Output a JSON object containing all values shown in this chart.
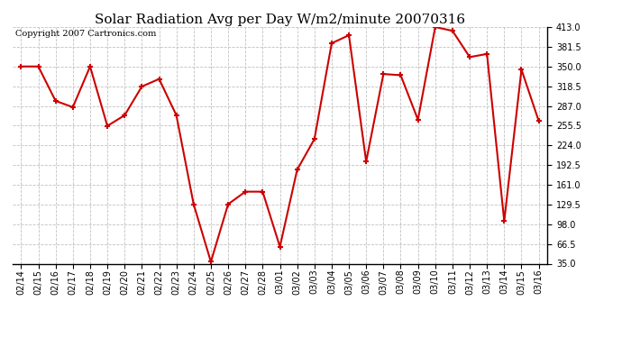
{
  "title": "Solar Radiation Avg per Day W/m2/minute 20070316",
  "copyright": "Copyright 2007 Cartronics.com",
  "labels": [
    "02/14",
    "02/15",
    "02/16",
    "02/17",
    "02/18",
    "02/19",
    "02/20",
    "02/21",
    "02/22",
    "02/23",
    "02/24",
    "02/25",
    "02/26",
    "02/27",
    "02/28",
    "03/01",
    "03/02",
    "03/03",
    "03/04",
    "03/05",
    "03/06",
    "03/07",
    "03/08",
    "03/09",
    "03/10",
    "03/11",
    "03/12",
    "03/13",
    "03/14",
    "03/15",
    "03/16"
  ],
  "values": [
    350,
    350,
    295,
    285,
    350,
    255,
    272,
    318,
    330,
    272,
    130,
    38,
    130,
    150,
    150,
    62,
    185,
    234,
    387,
    400,
    198,
    338,
    336,
    265,
    413,
    407,
    365,
    370,
    103,
    345,
    263
  ],
  "line_color": "#cc0000",
  "marker_color": "#cc0000",
  "bg_color": "#ffffff",
  "grid_color": "#c0c0c0",
  "y_ticks": [
    35.0,
    66.5,
    98.0,
    129.5,
    161.0,
    192.5,
    224.0,
    255.5,
    287.0,
    318.5,
    350.0,
    381.5,
    413.0
  ],
  "ylim": [
    35.0,
    413.0
  ],
  "title_fontsize": 11,
  "tick_fontsize": 7,
  "copyright_fontsize": 7
}
